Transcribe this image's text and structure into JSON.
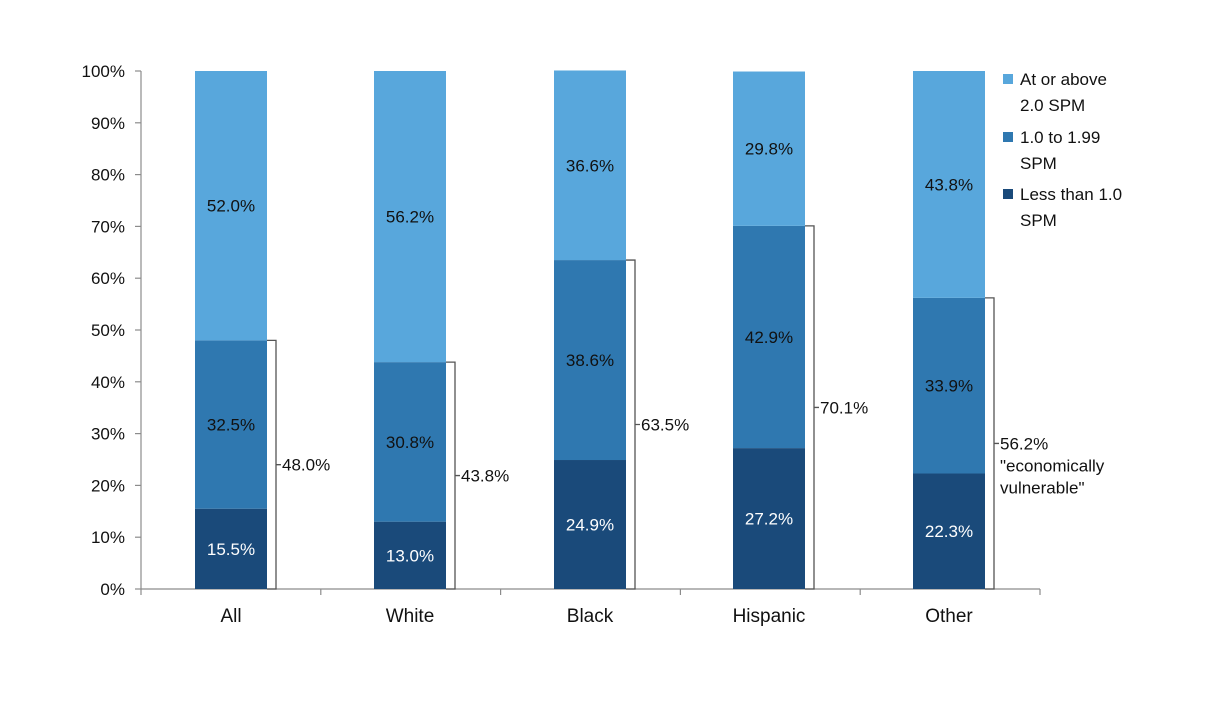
{
  "chart_data": {
    "type": "bar",
    "stacked": true,
    "categories": [
      "All",
      "White",
      "Black",
      "Hispanic",
      "Other"
    ],
    "series": [
      {
        "name": "Less than 1.0 SPM",
        "values": [
          15.5,
          13.0,
          24.9,
          27.2,
          22.3
        ],
        "labels": [
          "15.5%",
          "13.0%",
          "24.9%",
          "27.2%",
          "22.3%"
        ],
        "color": "#1a4a7a"
      },
      {
        "name": "1.0 to 1.99 SPM",
        "values": [
          32.5,
          30.8,
          38.6,
          42.9,
          33.9
        ],
        "labels": [
          "32.5%",
          "30.8%",
          "38.6%",
          "42.9%",
          "33.9%"
        ],
        "color": "#2f78b0"
      },
      {
        "name": "At or above 2.0 SPM",
        "values": [
          52.0,
          56.2,
          36.6,
          29.8,
          43.8
        ],
        "labels": [
          "52.0%",
          "56.2%",
          "36.6%",
          "29.8%",
          "43.8%"
        ],
        "color": "#58a7dc"
      }
    ],
    "legend": [
      {
        "lines": [
          "At or above",
          "2.0 SPM"
        ],
        "color": "#58a7dc"
      },
      {
        "lines": [
          "1.0 to 1.99",
          "SPM"
        ],
        "color": "#2f78b0"
      },
      {
        "lines": [
          "Less than 1.0",
          "SPM"
        ],
        "color": "#1a4a7a"
      }
    ],
    "legend_position": "top-right",
    "brackets": [
      {
        "category": "All",
        "value": 48.0,
        "lines": [
          "48.0%"
        ]
      },
      {
        "category": "White",
        "value": 43.8,
        "lines": [
          "43.8%"
        ]
      },
      {
        "category": "Black",
        "value": 63.5,
        "lines": [
          "63.5%"
        ]
      },
      {
        "category": "Hispanic",
        "value": 70.1,
        "lines": [
          "70.1%"
        ]
      },
      {
        "category": "Other",
        "value": 56.2,
        "lines": [
          "56.2%",
          "\"economically",
          "vulnerable\""
        ]
      }
    ],
    "y_ticks": [
      "0%",
      "10%",
      "20%",
      "30%",
      "40%",
      "50%",
      "60%",
      "70%",
      "80%",
      "90%",
      "100%"
    ],
    "ylim": [
      0,
      100
    ],
    "grid": false,
    "title": "",
    "xlabel": "",
    "ylabel": ""
  }
}
